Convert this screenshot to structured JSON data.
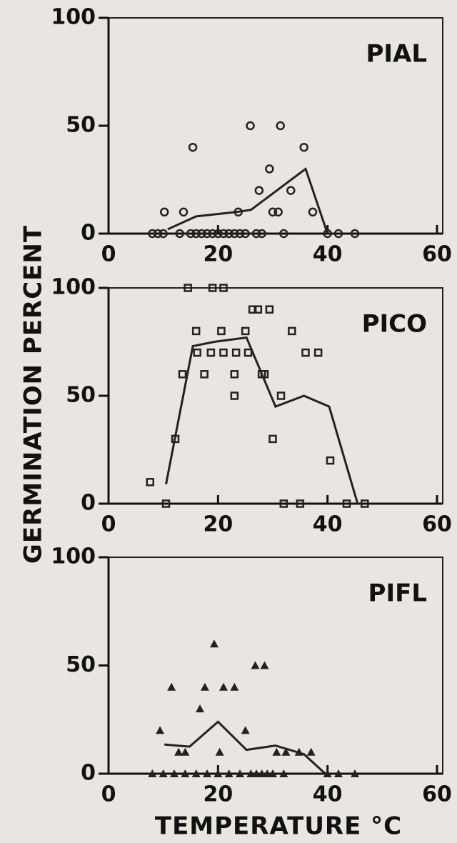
{
  "ylabel": "GERMINATION PERCENT",
  "xlabel": "TEMPERATURE °C",
  "chart_data": [
    {
      "type": "scatter",
      "title": "PIAL",
      "xlim": [
        0,
        60
      ],
      "ylim": [
        0,
        100
      ],
      "xticks": [
        0,
        20,
        40,
        60
      ],
      "yticks": [
        0,
        50,
        100
      ],
      "series": [
        {
          "marker": "circle",
          "color": "#222",
          "x": [
            10.2,
            13.7,
            15.4,
            25.9,
            31.4,
            29.4,
            27.5,
            33.3,
            35.7,
            37.3,
            23.7,
            30,
            31,
            8,
            9,
            10,
            13,
            15,
            16,
            17,
            18,
            19,
            20,
            21,
            22,
            23,
            24,
            25,
            27,
            28,
            32,
            40,
            42,
            45
          ],
          "values": [
            10,
            10,
            40,
            50,
            50,
            30,
            20,
            20,
            40,
            10,
            10,
            10,
            10,
            0,
            0,
            0,
            0,
            0,
            0,
            0,
            0,
            0,
            0,
            0,
            0,
            0,
            0,
            0,
            0,
            0,
            0,
            0,
            0,
            0
          ]
        },
        {
          "marker": "line",
          "color": "#222",
          "x": [
            10.8,
            16,
            23.3,
            26,
            36,
            40
          ],
          "values": [
            2,
            8,
            10,
            11,
            30,
            0
          ]
        }
      ]
    },
    {
      "type": "scatter",
      "title": "PICO",
      "xlim": [
        0,
        60
      ],
      "ylim": [
        0,
        100
      ],
      "xticks": [
        0,
        20,
        40,
        60
      ],
      "yticks": [
        0,
        50,
        100
      ],
      "series": [
        {
          "marker": "square",
          "color": "#222",
          "x": [
            7.6,
            12.2,
            13.5,
            14.5,
            16,
            16.2,
            17.5,
            18.7,
            19,
            21,
            20.6,
            21,
            23.3,
            23,
            23,
            25,
            25.5,
            26.3,
            27.3,
            28,
            28.5,
            29.4,
            30,
            31.5,
            33.5,
            36,
            38.3,
            40.5,
            10.5,
            32,
            35,
            43.5,
            46.8
          ],
          "values": [
            10,
            30,
            60,
            100,
            80,
            70,
            60,
            70,
            100,
            100,
            80,
            70,
            70,
            60,
            50,
            80,
            70,
            90,
            90,
            60,
            60,
            90,
            30,
            50,
            80,
            70,
            70,
            20,
            0,
            0,
            0,
            0,
            0
          ]
        },
        {
          "marker": "line",
          "color": "#222",
          "x": [
            10.5,
            15.4,
            19.3,
            25.2,
            30.5,
            35.7,
            40.3,
            45.5
          ],
          "values": [
            9,
            73,
            75,
            77,
            45,
            50,
            45,
            0
          ]
        }
      ]
    },
    {
      "type": "scatter",
      "title": "PIFL",
      "xlim": [
        0,
        60
      ],
      "ylim": [
        0,
        100
      ],
      "xticks": [
        0,
        20,
        40,
        60
      ],
      "yticks": [
        0,
        50,
        100
      ],
      "series": [
        {
          "marker": "triangle",
          "color": "#222",
          "x": [
            9.4,
            11.5,
            12.8,
            14,
            17.6,
            16.7,
            19.3,
            20.3,
            21,
            23,
            25,
            26.8,
            28.5,
            30.7,
            32.4,
            34.8,
            37,
            8,
            10,
            12,
            14,
            16,
            18,
            20,
            22,
            24,
            26,
            27,
            28,
            29,
            30,
            32,
            40,
            42,
            45
          ],
          "values": [
            20,
            40,
            10,
            10,
            40,
            30,
            60,
            10,
            40,
            40,
            20,
            50,
            50,
            10,
            10,
            10,
            10,
            0,
            0,
            0,
            0,
            0,
            0,
            0,
            0,
            0,
            0,
            0,
            0,
            0,
            0,
            0,
            0,
            0,
            0
          ]
        },
        {
          "marker": "line",
          "color": "#222",
          "x": [
            10.2,
            14.8,
            20,
            25.2,
            30.5,
            35.7,
            39.6
          ],
          "values": [
            13.5,
            12.5,
            24,
            11,
            13,
            9,
            0
          ]
        }
      ]
    }
  ]
}
